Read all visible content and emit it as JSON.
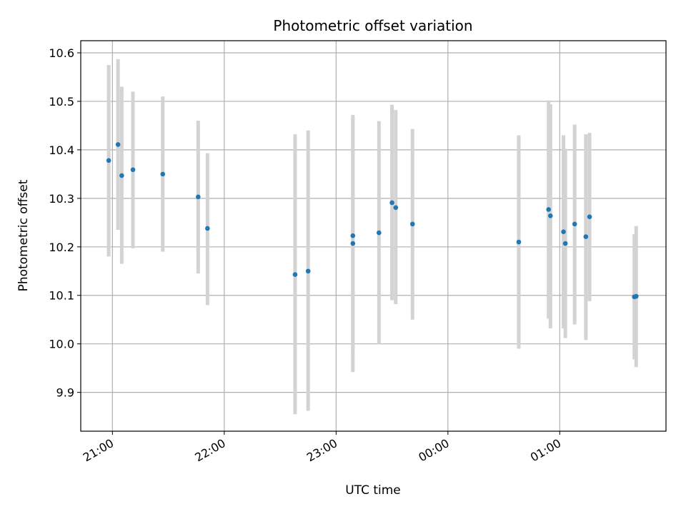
{
  "chart_data": {
    "type": "scatter",
    "title": "Photometric offset variation",
    "xlabel": "UTC time",
    "ylabel": "Photometric offset",
    "x_unit": "UTC clock time; times after 24:00 roll over past midnight",
    "xlim": [
      "20:43",
      "25:57"
    ],
    "ylim": [
      9.82,
      10.625
    ],
    "x_ticks": [
      "21:00",
      "22:00",
      "23:00",
      "00:00",
      "01:00"
    ],
    "y_ticks": [
      "9.9",
      "10.0",
      "10.1",
      "10.2",
      "10.3",
      "10.4",
      "10.5",
      "10.6"
    ],
    "grid": true,
    "legend": "none",
    "colors": {
      "point": "#1f77b4",
      "errorbar": "#d3d3d3",
      "grid": "#b0b0b0"
    },
    "points": [
      {
        "x": "20:58",
        "y": 10.378,
        "ylow": 10.18,
        "yhigh": 10.575
      },
      {
        "x": "21:03",
        "y": 10.411,
        "ylow": 10.235,
        "yhigh": 10.587
      },
      {
        "x": "21:05",
        "y": 10.347,
        "ylow": 10.165,
        "yhigh": 10.53
      },
      {
        "x": "21:11",
        "y": 10.359,
        "ylow": 10.197,
        "yhigh": 10.52
      },
      {
        "x": "21:27",
        "y": 10.35,
        "ylow": 10.19,
        "yhigh": 10.51
      },
      {
        "x": "21:46",
        "y": 10.303,
        "ylow": 10.145,
        "yhigh": 10.46
      },
      {
        "x": "21:51",
        "y": 10.238,
        "ylow": 10.08,
        "yhigh": 10.393
      },
      {
        "x": "22:38",
        "y": 10.143,
        "ylow": 9.855,
        "yhigh": 10.432
      },
      {
        "x": "22:45",
        "y": 10.15,
        "ylow": 9.862,
        "yhigh": 10.44
      },
      {
        "x": "23:09",
        "y": 10.207,
        "ylow": 9.942,
        "yhigh": 10.472
      },
      {
        "x": "23:09",
        "y": 10.223,
        "ylow": 9.98,
        "yhigh": 10.465
      },
      {
        "x": "23:23",
        "y": 10.229,
        "ylow": 10.0,
        "yhigh": 10.459
      },
      {
        "x": "23:30",
        "y": 10.291,
        "ylow": 10.09,
        "yhigh": 10.493
      },
      {
        "x": "23:32",
        "y": 10.281,
        "ylow": 10.082,
        "yhigh": 10.482
      },
      {
        "x": "23:41",
        "y": 10.247,
        "ylow": 10.05,
        "yhigh": 10.443
      },
      {
        "x": "24:38",
        "y": 10.21,
        "ylow": 9.99,
        "yhigh": 10.43
      },
      {
        "x": "24:54",
        "y": 10.277,
        "ylow": 10.052,
        "yhigh": 10.502
      },
      {
        "x": "24:55",
        "y": 10.264,
        "ylow": 10.032,
        "yhigh": 10.494
      },
      {
        "x": "25:02",
        "y": 10.231,
        "ylow": 10.032,
        "yhigh": 10.43
      },
      {
        "x": "25:03",
        "y": 10.207,
        "ylow": 10.012,
        "yhigh": 10.402
      },
      {
        "x": "25:08",
        "y": 10.247,
        "ylow": 10.04,
        "yhigh": 10.452
      },
      {
        "x": "25:14",
        "y": 10.221,
        "ylow": 10.008,
        "yhigh": 10.432
      },
      {
        "x": "25:16",
        "y": 10.262,
        "ylow": 10.088,
        "yhigh": 10.435
      },
      {
        "x": "25:40",
        "y": 10.097,
        "ylow": 9.968,
        "yhigh": 10.226
      },
      {
        "x": "25:41",
        "y": 10.098,
        "ylow": 9.952,
        "yhigh": 10.243
      }
    ]
  }
}
